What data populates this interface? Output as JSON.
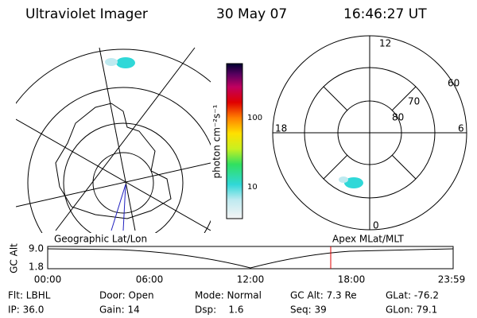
{
  "header": {
    "title": "Ultraviolet Imager",
    "date": "30 May 07",
    "time": "16:46:27 UT"
  },
  "colorbar": {
    "label": "photon cm⁻²s⁻¹",
    "ticks": [
      "100",
      "10"
    ]
  },
  "polar_plot": {
    "mlt_labels": [
      "12",
      "18",
      "6",
      "0"
    ],
    "lat_labels": [
      "60",
      "70",
      "80"
    ]
  },
  "timeline": {
    "axis_label": "GC Alt",
    "y_labels": [
      "9.0",
      "1.8"
    ],
    "left_title": "Geographic Lat/Lon",
    "right_title": "Apex MLat/MLT",
    "x_labels": [
      "00:00",
      "06:00",
      "12:00",
      "18:00",
      "23:59"
    ]
  },
  "footer": {
    "rows": [
      [
        "Flt: LBHL",
        "Door: Open",
        "Mode: Normal",
        "GC Alt: 7.3 Re",
        "GLat: -76.2"
      ],
      [
        "IP: 36.0",
        "Gain: 14",
        "Dsp:    1.6",
        "Seq: 39",
        "GLon: 79.1"
      ]
    ]
  }
}
